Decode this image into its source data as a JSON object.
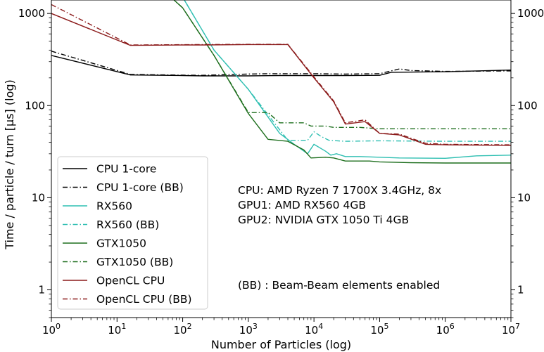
{
  "chart_data": {
    "type": "line",
    "title": "",
    "xlabel": "Number of Particles (log)",
    "ylabel": "Time / particle / turn [µs] (log)",
    "xscale": "log",
    "yscale": "log",
    "xlim": [
      1,
      10000000
    ],
    "ylim": [
      0.5,
      1400
    ],
    "grid": false,
    "legend_position": "lower-left",
    "x_ticks": [
      {
        "value": 1,
        "base": "10",
        "exp": "0"
      },
      {
        "value": 10,
        "base": "10",
        "exp": "1"
      },
      {
        "value": 100,
        "base": "10",
        "exp": "2"
      },
      {
        "value": 1000,
        "base": "10",
        "exp": "3"
      },
      {
        "value": 10000,
        "base": "10",
        "exp": "4"
      },
      {
        "value": 100000,
        "base": "10",
        "exp": "5"
      },
      {
        "value": 1000000,
        "base": "10",
        "exp": "6"
      },
      {
        "value": 10000000,
        "base": "10",
        "exp": "7"
      }
    ],
    "y_ticks": [
      {
        "value": 1,
        "label": "1"
      },
      {
        "value": 10,
        "label": "10"
      },
      {
        "value": 100,
        "label": "100"
      },
      {
        "value": 1000,
        "label": "1000"
      }
    ],
    "series": [
      {
        "name": "CPU 1-core",
        "color": "#000000",
        "dash": "solid",
        "points": [
          [
            1,
            350
          ],
          [
            16,
            215
          ],
          [
            100,
            212
          ],
          [
            200,
            210
          ],
          [
            1000,
            210
          ],
          [
            3000,
            212
          ],
          [
            10000,
            212
          ],
          [
            30000,
            212
          ],
          [
            100000,
            213
          ],
          [
            150000,
            230
          ],
          [
            1000000,
            233
          ],
          [
            10000000,
            243
          ]
        ]
      },
      {
        "name": "CPU 1-core (BB)",
        "color": "#000000",
        "dash": "dashdot",
        "points": [
          [
            1,
            390
          ],
          [
            16,
            218
          ],
          [
            100,
            214
          ],
          [
            200,
            213
          ],
          [
            1000,
            220
          ],
          [
            2000,
            222
          ],
          [
            10000,
            222
          ],
          [
            30000,
            220
          ],
          [
            100000,
            222
          ],
          [
            200000,
            250
          ],
          [
            300000,
            240
          ],
          [
            1000000,
            235
          ],
          [
            10000000,
            238
          ]
        ]
      },
      {
        "name": "RX560",
        "color": "#2fbfb2",
        "dash": "solid",
        "points": [
          [
            40,
            2500
          ],
          [
            100,
            1500
          ],
          [
            300,
            400
          ],
          [
            1000,
            150
          ],
          [
            3000,
            50
          ],
          [
            5000,
            38
          ],
          [
            8000,
            30
          ],
          [
            10000,
            38
          ],
          [
            15000,
            32
          ],
          [
            18000,
            29
          ],
          [
            22000,
            30
          ],
          [
            30000,
            28
          ],
          [
            50000,
            28
          ],
          [
            100000,
            27.5
          ],
          [
            200000,
            27
          ],
          [
            1000000,
            26.8
          ],
          [
            3000000,
            28.5
          ],
          [
            10000000,
            29
          ]
        ]
      },
      {
        "name": "RX560 (BB)",
        "color": "#2fbfb2",
        "dash": "dashdot",
        "points": [
          [
            40,
            2500
          ],
          [
            100,
            1500
          ],
          [
            300,
            400
          ],
          [
            1000,
            150
          ],
          [
            4000,
            42
          ],
          [
            8000,
            42
          ],
          [
            10000,
            52
          ],
          [
            13000,
            46
          ],
          [
            17000,
            42
          ],
          [
            30000,
            41
          ],
          [
            100000,
            41.5
          ],
          [
            1000000,
            41
          ],
          [
            10000000,
            41
          ]
        ]
      },
      {
        "name": "GTX1050",
        "color": "#1d6e1d",
        "dash": "solid",
        "points": [
          [
            30,
            2500
          ],
          [
            100,
            1150
          ],
          [
            300,
            350
          ],
          [
            1000,
            82
          ],
          [
            2000,
            43
          ],
          [
            4000,
            41
          ],
          [
            7000,
            33
          ],
          [
            9000,
            27
          ],
          [
            15000,
            27.5
          ],
          [
            20000,
            27
          ],
          [
            30000,
            25
          ],
          [
            70000,
            25
          ],
          [
            100000,
            24.5
          ],
          [
            300000,
            24
          ],
          [
            1000000,
            23.8
          ],
          [
            10000000,
            23.8
          ]
        ]
      },
      {
        "name": "GTX1050 (BB)",
        "color": "#1d6e1d",
        "dash": "dashdot",
        "points": [
          [
            30,
            2500
          ],
          [
            100,
            1150
          ],
          [
            300,
            350
          ],
          [
            1000,
            84
          ],
          [
            2000,
            84
          ],
          [
            3000,
            65
          ],
          [
            7000,
            65
          ],
          [
            9000,
            60
          ],
          [
            15000,
            60
          ],
          [
            20000,
            58
          ],
          [
            30000,
            58
          ],
          [
            50000,
            58
          ],
          [
            100000,
            56
          ],
          [
            1000000,
            56
          ],
          [
            10000000,
            56
          ]
        ]
      },
      {
        "name": "OpenCL CPU",
        "color": "#8b1a1a",
        "dash": "solid",
        "points": [
          [
            1,
            1000
          ],
          [
            16,
            450
          ],
          [
            100,
            455
          ],
          [
            200,
            455
          ],
          [
            1000,
            460
          ],
          [
            4000,
            460
          ],
          [
            10000,
            200
          ],
          [
            20000,
            110
          ],
          [
            30000,
            63
          ],
          [
            60000,
            67
          ],
          [
            100000,
            50
          ],
          [
            200000,
            48
          ],
          [
            500000,
            38
          ],
          [
            1000000,
            37.5
          ],
          [
            10000000,
            37
          ]
        ]
      },
      {
        "name": "OpenCL CPU (BB)",
        "color": "#8b1a1a",
        "dash": "dashdot",
        "points": [
          [
            1,
            1250
          ],
          [
            16,
            455
          ],
          [
            100,
            458
          ],
          [
            200,
            460
          ],
          [
            1000,
            462
          ],
          [
            4000,
            462
          ],
          [
            10000,
            205
          ],
          [
            20000,
            112
          ],
          [
            30000,
            65
          ],
          [
            60000,
            70
          ],
          [
            100000,
            50
          ],
          [
            200000,
            49
          ],
          [
            500000,
            39
          ],
          [
            1000000,
            38
          ],
          [
            10000000,
            37.5
          ]
        ]
      }
    ],
    "annotations": [
      {
        "id": "cpu",
        "text": "CPU: AMD Ryzen 7 1700X 3.4GHz, 8x"
      },
      {
        "id": "gpu1",
        "text": "GPU1: AMD RX560 4GB"
      },
      {
        "id": "gpu2",
        "text": "GPU2: NVIDIA GTX 1050 Ti 4GB"
      },
      {
        "id": "bb",
        "text": "(BB) : Beam-Beam elements enabled"
      }
    ]
  }
}
